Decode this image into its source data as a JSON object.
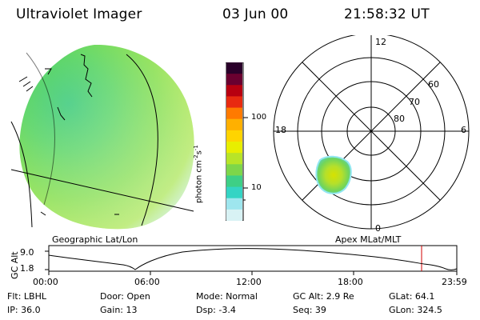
{
  "header": {
    "instrument": "Ultraviolet Imager",
    "date": "03 Jun 00",
    "time": "21:58:32 UT"
  },
  "left_panel": {
    "label": "Geographic Lat/Lon"
  },
  "color_scale": {
    "title": "photon cm",
    "title_sup1": "-2",
    "title_mid": "s",
    "title_sup2": "-1",
    "ticks": [
      "100",
      "10"
    ],
    "colors": [
      "#2a002a",
      "#6a0030",
      "#b80010",
      "#e82a10",
      "#ff7a00",
      "#ffb000",
      "#ffd400",
      "#e8ee00",
      "#b8e428",
      "#7ed64a",
      "#3ecf86",
      "#34d4c4",
      "#9ee6ee",
      "#d8f2f4"
    ]
  },
  "right_panel": {
    "label": "Apex MLat/MLT",
    "mlt_labels": [
      "12",
      "18",
      "6",
      "0"
    ],
    "lat_labels": [
      "60",
      "70",
      "80"
    ]
  },
  "timeline": {
    "ylabel": "GC Alt",
    "ticks_y": [
      "9.0",
      "1.8"
    ],
    "ticks_x": [
      "00:00",
      "06:00",
      "12:00",
      "18:00",
      "23:59"
    ],
    "marker_time": "21:58"
  },
  "info": {
    "flt": "Flt: LBHL",
    "ip": "IP: 36.0",
    "door": "Door: Open",
    "gain": "Gain: 13",
    "mode": "Mode: Normal",
    "dsp": "Dsp:   -3.4",
    "gc_alt": "GC Alt: 2.9 Re",
    "seq": "Seq: 39",
    "glat": "GLat:  64.1",
    "glon": "GLon: 324.5"
  }
}
